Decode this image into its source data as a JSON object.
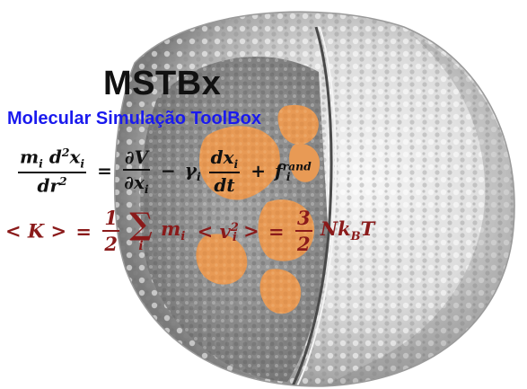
{
  "header": {
    "title": "MSTBx",
    "subtitle": "Molecular Simulação ToolBox"
  },
  "equations": {
    "langevin": {
      "lhs_num": "m",
      "lhs_num_sub": "i",
      "lhs_num_d": "d",
      "lhs_num_sup": "2",
      "lhs_num_x": "x",
      "lhs_num_x_sub": "i",
      "lhs_den": "dr",
      "lhs_den_sup": "2",
      "eq": "=",
      "t1_num": "∂V",
      "t1_den": "∂x",
      "t1_den_sub": "i",
      "minus": "−",
      "gamma": "γ",
      "gamma_sub": "i",
      "t2_num": "dx",
      "t2_num_sub": "i",
      "t2_den": "dt",
      "plus": "+",
      "f": "f",
      "f_sup": "rand",
      "f_sub": "i"
    },
    "kinetic": {
      "lhs": "< K >",
      "eq1": "=",
      "half_num": "1",
      "half_den": "2",
      "sigma": "∑",
      "sigma_idx": "i",
      "m": "m",
      "m_sub": "i",
      "v_open": "< v",
      "v_sub": "i",
      "v_sup": "2",
      "v_close": ">",
      "eq2": "=",
      "tf_num": "3",
      "tf_den": "2",
      "rhs": "Nk",
      "rhs_sub": "B",
      "rhs_T": "T"
    }
  },
  "colors": {
    "title": "#111111",
    "subtitle": "#1a1aee",
    "equation1": "#111111",
    "equation2": "#8a1a1a",
    "protein_surface": "#e9e9e9",
    "highlight": "#e89a55"
  }
}
